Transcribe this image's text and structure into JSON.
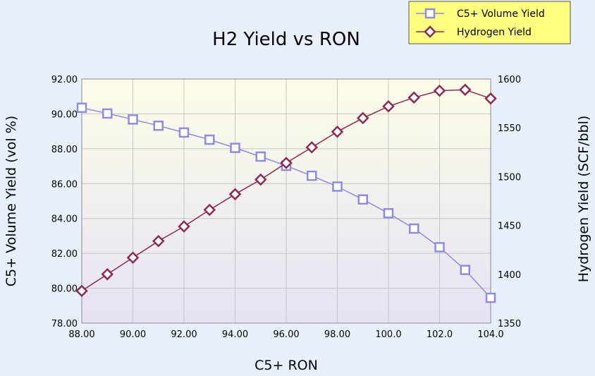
{
  "colors": {
    "background": "#e8f0fc",
    "plot_top": "#fdfde8",
    "plot_bottom": "#e6e2f4",
    "grid": "#c4c4c4",
    "legend_bg": "#ffff80",
    "series_c5": "#8c8ce0",
    "series_h2": "#8b2a52",
    "text": "#000000"
  },
  "legend": {
    "items": [
      {
        "label": "C5+ Volume Yield",
        "icon": "square-marker-icon"
      },
      {
        "label": "Hydrogen Yield",
        "icon": "diamond-marker-icon"
      }
    ]
  },
  "chart_data": {
    "type": "line",
    "title": "H2 Yield vs RON",
    "xlabel": "C5+ RON",
    "ylabel_left": "C5+ Volume Yield (vol %)",
    "ylabel_right": "Hydrogen Yield (SCF/bbl)",
    "xlim": [
      88,
      104
    ],
    "ylim_left": [
      78,
      92
    ],
    "ylim_right": [
      1350,
      1600
    ],
    "grid": true,
    "legend_position": "top-right",
    "x_ticks": [
      "88.00",
      "90.00",
      "92.00",
      "94.00",
      "96.00",
      "98.00",
      "100.0",
      "102.0",
      "104.0"
    ],
    "y_left_ticks": [
      "78.00",
      "80.00",
      "82.00",
      "84.00",
      "86.00",
      "88.00",
      "90.00",
      "92.00"
    ],
    "y_right_ticks": [
      "1350",
      "1400",
      "1450",
      "1500",
      "1550",
      "1600"
    ],
    "series": [
      {
        "name": "C5+ Volume Yield",
        "axis": "left",
        "marker": "square",
        "x": [
          88,
          89,
          90,
          91,
          92,
          93,
          94,
          95,
          96,
          97,
          98,
          99,
          100,
          101,
          102,
          103,
          104
        ],
        "y": [
          90.35,
          90.02,
          89.68,
          89.32,
          88.93,
          88.52,
          88.05,
          87.55,
          87.02,
          86.45,
          85.83,
          85.09,
          84.3,
          83.42,
          82.35,
          81.05,
          79.45
        ]
      },
      {
        "name": "Hydrogen Yield",
        "axis": "right",
        "marker": "diamond",
        "x": [
          88,
          89,
          90,
          91,
          92,
          93,
          94,
          95,
          96,
          97,
          98,
          99,
          100,
          101,
          102,
          103,
          104
        ],
        "y": [
          1383,
          1400,
          1417,
          1434,
          1449,
          1466,
          1482,
          1497,
          1514,
          1530,
          1546,
          1560,
          1572,
          1581,
          1588,
          1589,
          1580
        ]
      }
    ]
  }
}
